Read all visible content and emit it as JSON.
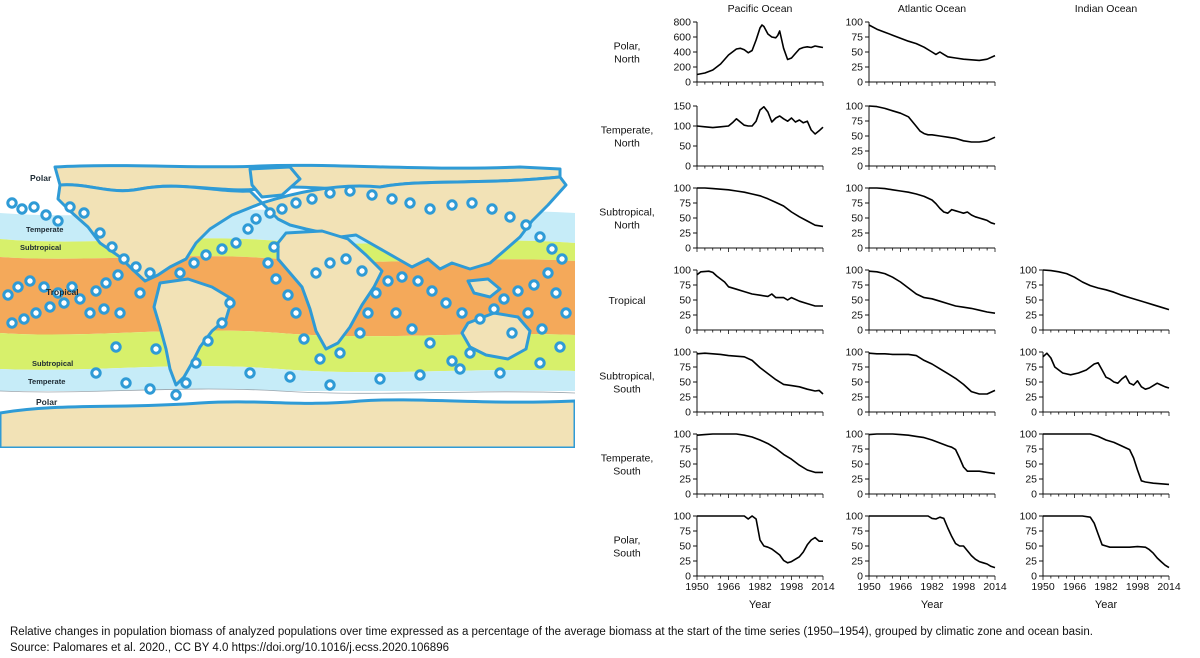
{
  "map": {
    "zone_labels": [
      "Polar",
      "Temperate",
      "Subtropical",
      "Tropical",
      "Subtropical",
      "Temperate",
      "Polar"
    ],
    "colors": {
      "ocean_polar": "#ffffff",
      "ocean_temperate": "#c6ecf8",
      "ocean_subtropical": "#d7f06b",
      "ocean_tropical": "#f4a95a",
      "land": "#f2e2b6",
      "marker": "#2f9bd6",
      "coast": "#2f9bd6"
    }
  },
  "chart_data": {
    "type": "line",
    "columns": [
      "Pacific Ocean",
      "Atlantic Ocean",
      "Indian Ocean"
    ],
    "rows": [
      {
        "key": "polar_north",
        "label": "Polar,\nNorth"
      },
      {
        "key": "temperate_north",
        "label": "Temperate,\nNorth"
      },
      {
        "key": "subtropical_north",
        "label": "Subtropical,\nNorth"
      },
      {
        "key": "tropical",
        "label": "Tropical"
      },
      {
        "key": "subtropical_south",
        "label": "Subtropical,\nSouth"
      },
      {
        "key": "temperate_south",
        "label": "Temperate,\nSouth"
      },
      {
        "key": "polar_south",
        "label": "Polar,\nSouth"
      }
    ],
    "xlabel": "Year",
    "xlim": [
      1950,
      2014
    ],
    "xticks": [
      1950,
      1966,
      1982,
      1998,
      2014
    ],
    "panels": [
      {
        "row": 0,
        "col": 0,
        "ylim": [
          0,
          800
        ],
        "yticks": [
          0,
          200,
          400,
          600,
          800
        ],
        "x": [
          1950,
          1954,
          1958,
          1962,
          1966,
          1970,
          1972,
          1974,
          1976,
          1978,
          1980,
          1982,
          1983,
          1984,
          1986,
          1988,
          1990,
          1991,
          1992,
          1994,
          1996,
          1998,
          2000,
          2002,
          2004,
          2006,
          2008,
          2010,
          2012,
          2014
        ],
        "y": [
          100,
          120,
          160,
          240,
          360,
          440,
          450,
          430,
          390,
          420,
          560,
          720,
          760,
          740,
          640,
          600,
          590,
          620,
          680,
          450,
          300,
          320,
          380,
          440,
          460,
          470,
          460,
          480,
          470,
          460
        ]
      },
      {
        "row": 0,
        "col": 1,
        "ylim": [
          0,
          100
        ],
        "yticks": [
          0,
          25,
          50,
          75,
          100
        ],
        "x": [
          1950,
          1954,
          1958,
          1962,
          1966,
          1970,
          1974,
          1978,
          1982,
          1984,
          1986,
          1988,
          1990,
          1994,
          1998,
          2002,
          2006,
          2010,
          2014
        ],
        "y": [
          95,
          88,
          83,
          78,
          73,
          68,
          64,
          58,
          50,
          46,
          50,
          46,
          42,
          40,
          38,
          37,
          36,
          38,
          44
        ]
      },
      {
        "row": 1,
        "col": 0,
        "ylim": [
          0,
          150
        ],
        "yticks": [
          0,
          50,
          100,
          150
        ],
        "x": [
          1950,
          1954,
          1958,
          1962,
          1966,
          1968,
          1970,
          1972,
          1974,
          1976,
          1978,
          1980,
          1982,
          1984,
          1986,
          1988,
          1990,
          1992,
          1994,
          1996,
          1998,
          2000,
          2002,
          2004,
          2006,
          2008,
          2010,
          2012,
          2014
        ],
        "y": [
          100,
          98,
          96,
          98,
          100,
          108,
          118,
          110,
          102,
          100,
          100,
          112,
          140,
          148,
          135,
          110,
          120,
          125,
          118,
          112,
          120,
          110,
          115,
          108,
          112,
          90,
          80,
          88,
          97
        ]
      },
      {
        "row": 1,
        "col": 1,
        "ylim": [
          0,
          100
        ],
        "yticks": [
          0,
          25,
          50,
          75,
          100
        ],
        "x": [
          1950,
          1954,
          1958,
          1962,
          1966,
          1970,
          1974,
          1976,
          1978,
          1980,
          1982,
          1986,
          1990,
          1994,
          1998,
          2002,
          2006,
          2010,
          2014
        ],
        "y": [
          100,
          99,
          96,
          92,
          88,
          82,
          66,
          58,
          54,
          52,
          52,
          50,
          48,
          46,
          42,
          40,
          40,
          42,
          48
        ]
      },
      {
        "row": 2,
        "col": 0,
        "ylim": [
          0,
          100
        ],
        "yticks": [
          0,
          25,
          50,
          75,
          100
        ],
        "x": [
          1950,
          1954,
          1958,
          1962,
          1966,
          1970,
          1974,
          1978,
          1982,
          1986,
          1990,
          1994,
          1998,
          2002,
          2006,
          2010,
          2014
        ],
        "y": [
          100,
          100,
          99,
          98,
          97,
          95,
          93,
          90,
          87,
          82,
          76,
          70,
          60,
          52,
          45,
          38,
          36
        ]
      },
      {
        "row": 2,
        "col": 1,
        "ylim": [
          0,
          100
        ],
        "yticks": [
          0,
          25,
          50,
          75,
          100
        ],
        "x": [
          1950,
          1954,
          1958,
          1962,
          1966,
          1970,
          1974,
          1978,
          1982,
          1984,
          1986,
          1988,
          1990,
          1992,
          1994,
          1996,
          1998,
          2000,
          2002,
          2004,
          2006,
          2008,
          2010,
          2012,
          2014
        ],
        "y": [
          100,
          100,
          99,
          97,
          95,
          93,
          90,
          86,
          80,
          74,
          66,
          60,
          58,
          64,
          62,
          60,
          58,
          60,
          55,
          52,
          50,
          48,
          46,
          42,
          40
        ]
      },
      {
        "row": 3,
        "col": 0,
        "ylim": [
          0,
          100
        ],
        "yticks": [
          0,
          25,
          50,
          75,
          100
        ],
        "x": [
          1950,
          1952,
          1956,
          1958,
          1960,
          1964,
          1966,
          1970,
          1974,
          1978,
          1982,
          1986,
          1988,
          1990,
          1994,
          1996,
          1998,
          2002,
          2006,
          2010,
          2014
        ],
        "y": [
          92,
          97,
          98,
          96,
          90,
          80,
          72,
          68,
          64,
          60,
          58,
          56,
          60,
          54,
          54,
          50,
          54,
          48,
          44,
          40,
          40
        ]
      },
      {
        "row": 3,
        "col": 1,
        "ylim": [
          0,
          100
        ],
        "yticks": [
          0,
          25,
          50,
          75,
          100
        ],
        "x": [
          1950,
          1954,
          1958,
          1962,
          1966,
          1970,
          1974,
          1978,
          1982,
          1986,
          1990,
          1994,
          1998,
          2002,
          2006,
          2010,
          2014
        ],
        "y": [
          98,
          97,
          94,
          88,
          80,
          70,
          60,
          54,
          52,
          48,
          44,
          40,
          38,
          36,
          33,
          30,
          28
        ]
      },
      {
        "row": 3,
        "col": 2,
        "ylim": [
          0,
          100
        ],
        "yticks": [
          0,
          25,
          50,
          75,
          100
        ],
        "x": [
          1950,
          1954,
          1958,
          1962,
          1966,
          1970,
          1974,
          1978,
          1982,
          1986,
          1990,
          1994,
          1998,
          2002,
          2006,
          2010,
          2014
        ],
        "y": [
          100,
          99,
          97,
          94,
          88,
          80,
          74,
          70,
          67,
          63,
          58,
          54,
          50,
          46,
          42,
          38,
          34
        ]
      },
      {
        "row": 4,
        "col": 0,
        "ylim": [
          0,
          100
        ],
        "yticks": [
          0,
          25,
          50,
          75,
          100
        ],
        "x": [
          1950,
          1954,
          1958,
          1962,
          1966,
          1970,
          1974,
          1978,
          1982,
          1986,
          1990,
          1994,
          1998,
          2002,
          2006,
          2010,
          2012,
          2014
        ],
        "y": [
          97,
          98,
          97,
          96,
          94,
          93,
          92,
          86,
          74,
          64,
          54,
          46,
          44,
          42,
          38,
          35,
          36,
          30
        ]
      },
      {
        "row": 4,
        "col": 1,
        "ylim": [
          0,
          100
        ],
        "yticks": [
          0,
          25,
          50,
          75,
          100
        ],
        "x": [
          1950,
          1954,
          1958,
          1962,
          1966,
          1970,
          1974,
          1978,
          1982,
          1986,
          1990,
          1994,
          1998,
          2002,
          2006,
          2010,
          2014
        ],
        "y": [
          98,
          97,
          97,
          96,
          96,
          96,
          94,
          86,
          80,
          72,
          64,
          56,
          46,
          34,
          30,
          30,
          36
        ]
      },
      {
        "row": 4,
        "col": 2,
        "ylim": [
          0,
          100
        ],
        "yticks": [
          0,
          25,
          50,
          75,
          100
        ],
        "x": [
          1950,
          1952,
          1954,
          1956,
          1960,
          1964,
          1968,
          1972,
          1976,
          1978,
          1980,
          1982,
          1984,
          1986,
          1988,
          1990,
          1992,
          1994,
          1996,
          1998,
          2000,
          2002,
          2004,
          2006,
          2008,
          2010,
          2012,
          2014
        ],
        "y": [
          92,
          98,
          90,
          75,
          65,
          62,
          65,
          70,
          80,
          82,
          70,
          58,
          55,
          50,
          48,
          55,
          60,
          48,
          45,
          52,
          42,
          38,
          40,
          44,
          48,
          45,
          42,
          40
        ]
      },
      {
        "row": 5,
        "col": 0,
        "ylim": [
          0,
          100
        ],
        "yticks": [
          0,
          25,
          50,
          75,
          100
        ],
        "x": [
          1950,
          1954,
          1958,
          1962,
          1966,
          1970,
          1974,
          1978,
          1982,
          1986,
          1990,
          1994,
          1998,
          2002,
          2006,
          2010,
          2014
        ],
        "y": [
          98,
          99,
          100,
          100,
          100,
          100,
          98,
          95,
          90,
          84,
          76,
          66,
          58,
          48,
          40,
          36,
          36
        ]
      },
      {
        "row": 5,
        "col": 1,
        "ylim": [
          0,
          100
        ],
        "yticks": [
          0,
          25,
          50,
          75,
          100
        ],
        "x": [
          1950,
          1954,
          1958,
          1962,
          1966,
          1970,
          1974,
          1978,
          1982,
          1986,
          1990,
          1992,
          1994,
          1996,
          1998,
          2000,
          2002,
          2006,
          2010,
          2014
        ],
        "y": [
          99,
          100,
          100,
          100,
          99,
          98,
          96,
          94,
          90,
          85,
          80,
          78,
          74,
          60,
          45,
          38,
          38,
          38,
          36,
          34
        ]
      },
      {
        "row": 5,
        "col": 2,
        "ylim": [
          0,
          100
        ],
        "yticks": [
          0,
          25,
          50,
          75,
          100
        ],
        "x": [
          1950,
          1954,
          1958,
          1962,
          1966,
          1970,
          1974,
          1978,
          1982,
          1986,
          1990,
          1994,
          1996,
          1998,
          2000,
          2002,
          2006,
          2010,
          2014
        ],
        "y": [
          100,
          100,
          100,
          100,
          100,
          100,
          100,
          96,
          90,
          86,
          80,
          74,
          60,
          40,
          22,
          20,
          18,
          17,
          16
        ]
      },
      {
        "row": 6,
        "col": 0,
        "ylim": [
          0,
          100
        ],
        "yticks": [
          0,
          25,
          50,
          75,
          100
        ],
        "x": [
          1950,
          1954,
          1958,
          1962,
          1966,
          1970,
          1974,
          1976,
          1978,
          1980,
          1982,
          1984,
          1986,
          1988,
          1990,
          1992,
          1994,
          1996,
          1998,
          2000,
          2002,
          2004,
          2006,
          2008,
          2010,
          2012,
          2014
        ],
        "y": [
          100,
          100,
          100,
          100,
          100,
          100,
          100,
          95,
          100,
          95,
          60,
          50,
          48,
          45,
          40,
          35,
          26,
          22,
          24,
          28,
          32,
          40,
          52,
          60,
          64,
          58,
          58
        ]
      },
      {
        "row": 6,
        "col": 1,
        "ylim": [
          0,
          100
        ],
        "yticks": [
          0,
          25,
          50,
          75,
          100
        ],
        "x": [
          1950,
          1954,
          1958,
          1962,
          1966,
          1970,
          1974,
          1978,
          1980,
          1982,
          1984,
          1986,
          1988,
          1990,
          1992,
          1994,
          1996,
          1998,
          2000,
          2002,
          2004,
          2006,
          2008,
          2010,
          2012,
          2014
        ],
        "y": [
          100,
          100,
          100,
          100,
          100,
          100,
          100,
          100,
          100,
          96,
          95,
          98,
          96,
          80,
          66,
          54,
          50,
          50,
          42,
          34,
          28,
          24,
          22,
          20,
          16,
          14
        ]
      },
      {
        "row": 6,
        "col": 2,
        "ylim": [
          0,
          100
        ],
        "yticks": [
          0,
          25,
          50,
          75,
          100
        ],
        "x": [
          1950,
          1954,
          1958,
          1962,
          1966,
          1970,
          1974,
          1976,
          1978,
          1980,
          1982,
          1984,
          1986,
          1990,
          1994,
          1998,
          2002,
          2004,
          2006,
          2008,
          2010,
          2012,
          2014
        ],
        "y": [
          100,
          100,
          100,
          100,
          100,
          100,
          98,
          88,
          70,
          52,
          50,
          48,
          48,
          48,
          48,
          49,
          48,
          44,
          38,
          30,
          24,
          18,
          14
        ]
      }
    ]
  },
  "caption": {
    "line1": "Relative changes in population biomass of analyzed populations over time expressed as a percentage of the average biomass at the start of the time series (1950–1954), grouped by climatic zone and ocean basin.",
    "line2": "Source: Palomares et al. 2020., CC BY 4.0 https://doi.org/10.1016/j.ecss.2020.106896"
  }
}
